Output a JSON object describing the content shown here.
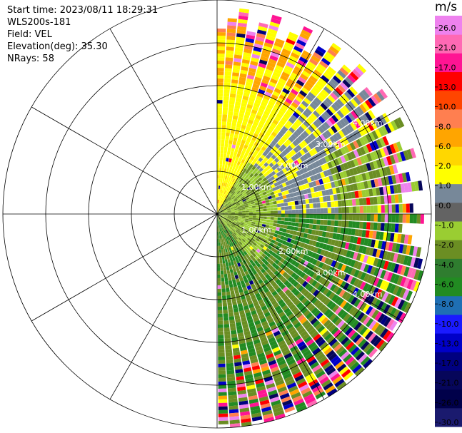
{
  "info": {
    "start_time": "Start time: 2023/08/11 18:29:31",
    "instrument": "WLS200s-181",
    "field": "Field: VEL",
    "elevation": "Elevation(deg): 35.30",
    "nrays": "NRays: 58"
  },
  "chart_data": {
    "type": "heatmap",
    "projection": "polar-ppi",
    "field": "VEL",
    "unit": "m/s",
    "azimuth_range_deg": [
      0,
      180
    ],
    "n_rays": 58,
    "range_rings_km": [
      "1.00km",
      "2.00km",
      "3.00km",
      "4.00km"
    ],
    "max_range_km": 5.0,
    "grid": true,
    "colorbar": {
      "ticks": [
        "26.0",
        "21.0",
        "17.0",
        "13.0",
        "10.0",
        "8.0",
        "6.0",
        "2.0",
        "1.0",
        "0.0",
        "-1.0",
        "-2.0",
        "-4.0",
        "-6.0",
        "-8.0",
        "-10.0",
        "-13.0",
        "-17.0",
        "-21.0",
        "-26.0",
        "-30.0"
      ],
      "colors": [
        "#1a1a6e",
        "#00004a",
        "#06065a",
        "#000080",
        "#0000c8",
        "#1a1aff",
        "#1f6fb4",
        "#228b22",
        "#2f7d2f",
        "#6b8e23",
        "#9acd32",
        "#636363",
        "#778899",
        "#ffff00",
        "#ffd700",
        "#ffa500",
        "#ff7f50",
        "#ff4500",
        "#ff0000",
        "#ff1493",
        "#ff69b4",
        "#ee82ee"
      ]
    }
  }
}
